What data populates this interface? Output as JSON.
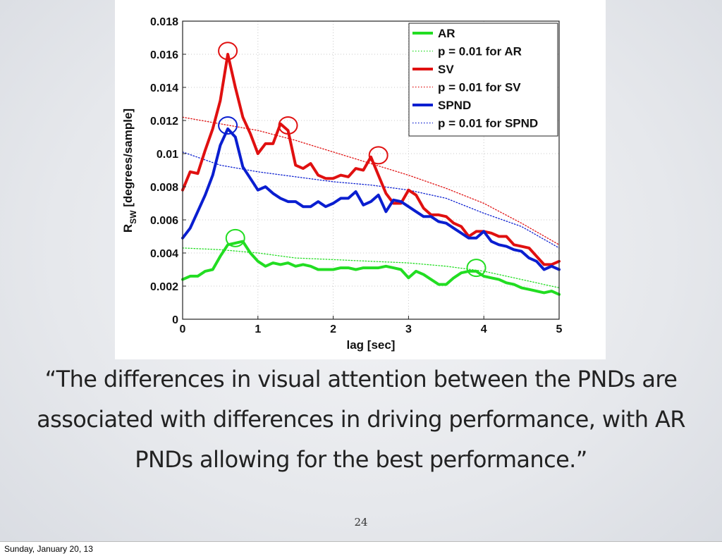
{
  "slide": {
    "quote": "“The differences in visual attention between the PNDs are associated with differences in driving performance, with AR PNDs allowing for the best performance.”",
    "page_number": "24",
    "footer_date": "Sunday, January 20, 13"
  },
  "chart_data": {
    "type": "line",
    "xlabel": "lag [sec]",
    "ylabel": "R",
    "ylabel_sub": "SW",
    "ylabel_unit": " [degrees/sample]",
    "xlim": [
      0,
      5
    ],
    "ylim": [
      0,
      0.018
    ],
    "xticks": [
      0,
      1,
      2,
      3,
      4,
      5
    ],
    "xtick_labels": [
      "0",
      "1",
      "2",
      "3",
      "4",
      "5"
    ],
    "yticks": [
      0,
      0.002,
      0.004,
      0.006,
      0.008,
      0.01,
      0.012,
      0.014,
      0.016,
      0.018
    ],
    "ytick_labels": [
      "0",
      "0.002",
      "0.004",
      "0.006",
      "0.008",
      "0.01",
      "0.012",
      "0.014",
      "0.016",
      "0.018"
    ],
    "grid": true,
    "legend_position": "top-right",
    "colors": {
      "AR": "#22dd22",
      "SV": "#e01010",
      "SPND": "#0a1ed0"
    },
    "series": [
      {
        "name": "AR",
        "style": "solid",
        "color": "#22dd22",
        "x": [
          0,
          0.1,
          0.2,
          0.3,
          0.4,
          0.5,
          0.6,
          0.7,
          0.8,
          0.9,
          1.0,
          1.1,
          1.2,
          1.3,
          1.4,
          1.5,
          1.6,
          1.7,
          1.8,
          1.9,
          2.0,
          2.1,
          2.2,
          2.3,
          2.4,
          2.5,
          2.6,
          2.7,
          2.8,
          2.9,
          3.0,
          3.1,
          3.2,
          3.3,
          3.4,
          3.5,
          3.6,
          3.7,
          3.8,
          3.9,
          4.0,
          4.1,
          4.2,
          4.3,
          4.4,
          4.5,
          4.6,
          4.7,
          4.8,
          4.9,
          5.0
        ],
        "y": [
          0.0024,
          0.0026,
          0.0026,
          0.0029,
          0.003,
          0.0038,
          0.0045,
          0.0046,
          0.0047,
          0.004,
          0.0035,
          0.0032,
          0.0034,
          0.0033,
          0.0034,
          0.0032,
          0.0033,
          0.0032,
          0.003,
          0.003,
          0.003,
          0.0031,
          0.0031,
          0.003,
          0.0031,
          0.0031,
          0.0031,
          0.0032,
          0.0031,
          0.003,
          0.0025,
          0.0029,
          0.0027,
          0.0024,
          0.0021,
          0.0021,
          0.0025,
          0.0028,
          0.0029,
          0.0029,
          0.0026,
          0.0025,
          0.0024,
          0.0022,
          0.0021,
          0.0019,
          0.0018,
          0.0017,
          0.0016,
          0.0017,
          0.0015
        ]
      },
      {
        "name": "p = 0.01 for AR",
        "style": "dotted",
        "color": "#22dd22",
        "x": [
          0,
          0.5,
          1.0,
          1.5,
          2.0,
          2.5,
          3.0,
          3.5,
          4.0,
          4.5,
          5.0
        ],
        "y": [
          0.0043,
          0.0042,
          0.004,
          0.0037,
          0.0036,
          0.0035,
          0.0034,
          0.0032,
          0.0029,
          0.0024,
          0.0019
        ]
      },
      {
        "name": "SV",
        "style": "solid",
        "color": "#e01010",
        "x": [
          0,
          0.1,
          0.2,
          0.3,
          0.4,
          0.5,
          0.6,
          0.7,
          0.8,
          0.9,
          1.0,
          1.1,
          1.2,
          1.3,
          1.4,
          1.5,
          1.6,
          1.7,
          1.8,
          1.9,
          2.0,
          2.1,
          2.2,
          2.3,
          2.4,
          2.5,
          2.6,
          2.7,
          2.8,
          2.9,
          3.0,
          3.1,
          3.2,
          3.3,
          3.4,
          3.5,
          3.6,
          3.7,
          3.8,
          3.9,
          4.0,
          4.1,
          4.2,
          4.3,
          4.4,
          4.5,
          4.6,
          4.7,
          4.8,
          4.9,
          5.0
        ],
        "y": [
          0.0078,
          0.0089,
          0.0088,
          0.0102,
          0.0115,
          0.0132,
          0.016,
          0.014,
          0.0122,
          0.0112,
          0.01,
          0.0106,
          0.0106,
          0.0118,
          0.0114,
          0.0093,
          0.0091,
          0.0094,
          0.0087,
          0.0085,
          0.0085,
          0.0087,
          0.0086,
          0.0091,
          0.009,
          0.0098,
          0.0087,
          0.0076,
          0.007,
          0.007,
          0.0078,
          0.0075,
          0.0067,
          0.0063,
          0.0063,
          0.0062,
          0.0058,
          0.0056,
          0.005,
          0.0053,
          0.0053,
          0.0052,
          0.005,
          0.005,
          0.0045,
          0.0044,
          0.0043,
          0.0038,
          0.0033,
          0.0033,
          0.0035
        ]
      },
      {
        "name": "p = 0.01 for SV",
        "style": "dotted",
        "color": "#e01010",
        "x": [
          0,
          0.5,
          1.0,
          1.5,
          2.0,
          2.5,
          3.0,
          3.5,
          4.0,
          4.5,
          5.0
        ],
        "y": [
          0.0122,
          0.0118,
          0.0114,
          0.0108,
          0.0101,
          0.0094,
          0.0087,
          0.0079,
          0.007,
          0.0058,
          0.0045
        ]
      },
      {
        "name": "SPND",
        "style": "solid",
        "color": "#0a1ed0",
        "x": [
          0,
          0.1,
          0.2,
          0.3,
          0.4,
          0.5,
          0.6,
          0.7,
          0.8,
          0.9,
          1.0,
          1.1,
          1.2,
          1.3,
          1.4,
          1.5,
          1.6,
          1.7,
          1.8,
          1.9,
          2.0,
          2.1,
          2.2,
          2.3,
          2.4,
          2.5,
          2.6,
          2.7,
          2.8,
          2.9,
          3.0,
          3.1,
          3.2,
          3.3,
          3.4,
          3.5,
          3.6,
          3.7,
          3.8,
          3.9,
          4.0,
          4.1,
          4.2,
          4.3,
          4.4,
          4.5,
          4.6,
          4.7,
          4.8,
          4.9,
          5.0
        ],
        "y": [
          0.0049,
          0.0055,
          0.0065,
          0.0075,
          0.0087,
          0.0105,
          0.0115,
          0.011,
          0.0092,
          0.0085,
          0.0078,
          0.008,
          0.0076,
          0.0073,
          0.0071,
          0.0071,
          0.0068,
          0.0068,
          0.0071,
          0.0068,
          0.007,
          0.0073,
          0.0073,
          0.0077,
          0.0069,
          0.0071,
          0.0075,
          0.0065,
          0.0072,
          0.0071,
          0.0068,
          0.0065,
          0.0062,
          0.0062,
          0.0059,
          0.0058,
          0.0055,
          0.0052,
          0.0049,
          0.0049,
          0.0053,
          0.0047,
          0.0045,
          0.0044,
          0.0042,
          0.0041,
          0.0037,
          0.0035,
          0.003,
          0.0032,
          0.003
        ]
      },
      {
        "name": "p = 0.01 for SPND",
        "style": "dotted",
        "color": "#0a1ed0",
        "x": [
          0,
          0.5,
          1.0,
          1.5,
          2.0,
          2.5,
          3.0,
          3.5,
          4.0,
          4.5,
          5.0
        ],
        "y": [
          0.0101,
          0.0093,
          0.0089,
          0.0086,
          0.0083,
          0.0081,
          0.0078,
          0.0073,
          0.0064,
          0.0056,
          0.0043
        ]
      }
    ],
    "annotations": [
      {
        "shape": "circle",
        "color": "#e01010",
        "x": 0.6,
        "y": 0.0162
      },
      {
        "shape": "circle",
        "color": "#e01010",
        "x": 1.4,
        "y": 0.0117
      },
      {
        "shape": "circle",
        "color": "#e01010",
        "x": 2.6,
        "y": 0.0099
      },
      {
        "shape": "circle",
        "color": "#0a1ed0",
        "x": 0.6,
        "y": 0.0117
      },
      {
        "shape": "circle",
        "color": "#22dd22",
        "x": 0.7,
        "y": 0.0049
      },
      {
        "shape": "circle",
        "color": "#22dd22",
        "x": 3.9,
        "y": 0.0031
      }
    ]
  }
}
